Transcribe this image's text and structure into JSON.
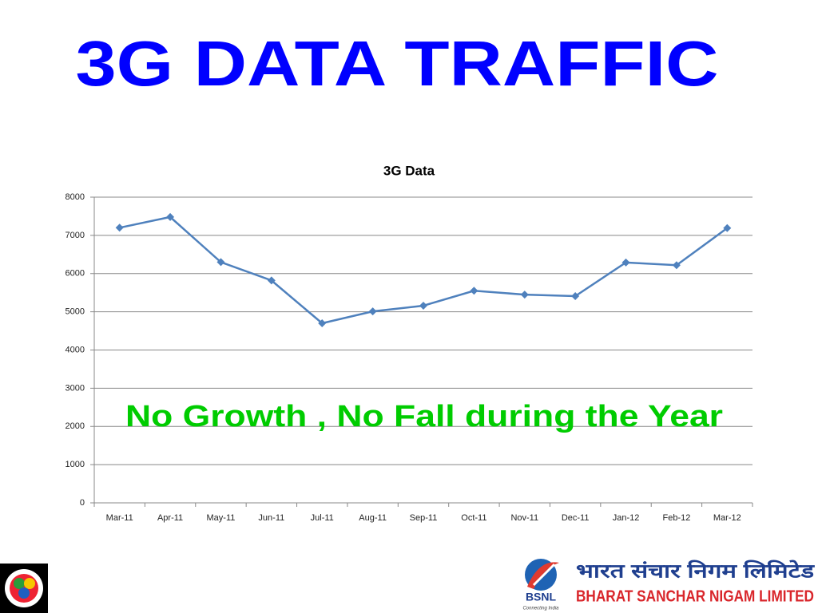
{
  "slide": {
    "title": "3G DATA TRAFFIC",
    "logo": {
      "brand": "BSNL",
      "tagline": "Connecting India",
      "hindi_name": "भारत संचार निगम लिमिटेड",
      "english_name": "BHARAT SANCHAR NIGAM LIMITED"
    }
  },
  "chart_data": {
    "type": "line",
    "title": "3G Data",
    "annotation": "No Growth , No Fall during the Year",
    "categories": [
      "Mar-11",
      "Apr-11",
      "May-11",
      "Jun-11",
      "Jul-11",
      "Aug-11",
      "Sep-11",
      "Oct-11",
      "Nov-11",
      "Dec-11",
      "Jan-12",
      "Feb-12",
      "Mar-12"
    ],
    "values": [
      7200,
      7480,
      6300,
      5820,
      4700,
      5010,
      5160,
      5550,
      5450,
      5410,
      6290,
      6220,
      7190
    ],
    "color": "#4f81bd",
    "ylim": [
      0,
      8000
    ],
    "yticks": [
      0,
      1000,
      2000,
      3000,
      4000,
      5000,
      6000,
      7000,
      8000
    ],
    "grid": true
  }
}
